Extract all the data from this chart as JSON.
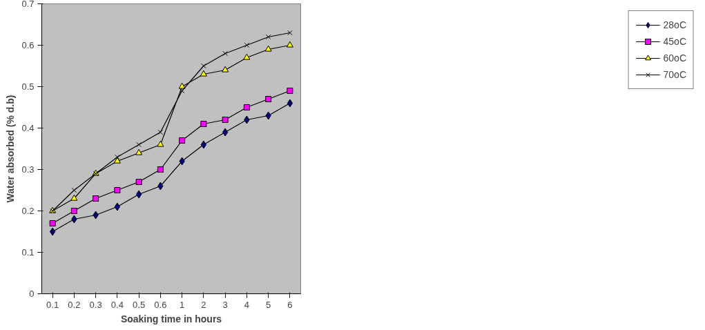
{
  "chart_data": {
    "type": "line",
    "xlabel": "Soaking time in hours",
    "ylabel": "Water absorbed (% d.b)",
    "categories": [
      "0.1",
      "0.2",
      "0.3",
      "0.4",
      "0.5",
      "0.6",
      "1",
      "2",
      "3",
      "4",
      "5",
      "6"
    ],
    "ylim": [
      0,
      0.7
    ],
    "yticks": [
      0,
      0.1,
      0.2,
      0.3,
      0.4,
      0.5,
      0.6,
      0.7
    ],
    "grid": false,
    "legend": "right",
    "series": [
      {
        "name": "28oC",
        "color": "#000080",
        "marker": "diamond",
        "values": [
          0.15,
          0.18,
          0.19,
          0.21,
          0.24,
          0.26,
          0.32,
          0.36,
          0.39,
          0.42,
          0.43,
          0.46
        ]
      },
      {
        "name": "45oC",
        "color": "#ff00ff",
        "marker": "square",
        "values": [
          0.17,
          0.2,
          0.23,
          0.25,
          0.27,
          0.3,
          0.37,
          0.41,
          0.42,
          0.45,
          0.47,
          0.49
        ]
      },
      {
        "name": "60oC",
        "color": "#ffff00",
        "marker": "triangle",
        "values": [
          0.2,
          0.23,
          0.29,
          0.32,
          0.34,
          0.36,
          0.5,
          0.53,
          0.54,
          0.57,
          0.59,
          0.6
        ]
      },
      {
        "name": "70oC",
        "color": "#000000",
        "marker": "cross",
        "values": [
          0.2,
          0.25,
          0.29,
          0.33,
          0.36,
          0.39,
          0.49,
          0.55,
          0.58,
          0.6,
          0.62,
          0.63
        ]
      }
    ]
  }
}
